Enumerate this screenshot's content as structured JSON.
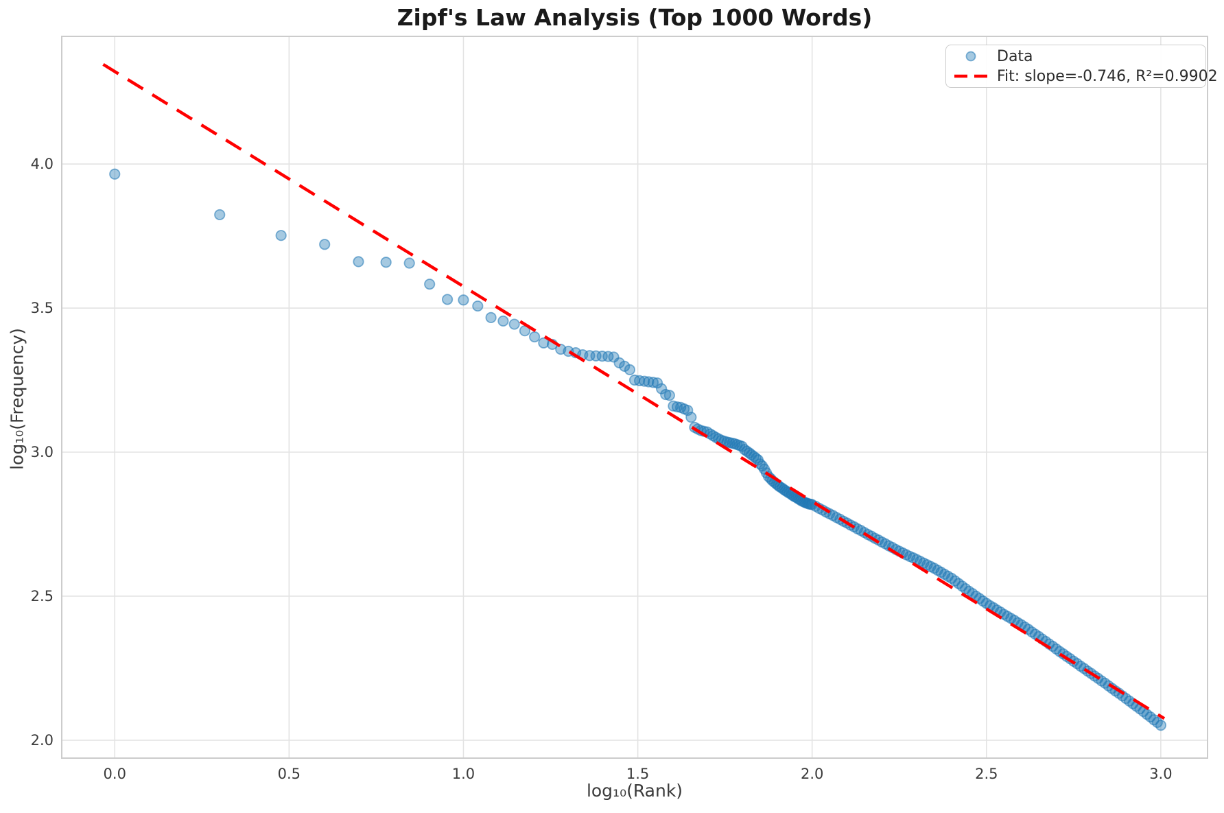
{
  "title": "Zipf's Law Analysis (Top 1000 Words)",
  "legend": {
    "data_label": "Data",
    "fit_label": "Fit: slope=-0.746, R²=0.9902"
  },
  "axes": {
    "xlabel": "log₁₀(Rank)",
    "ylabel": "log₁₀(Frequency)",
    "x_ticks": [
      0.0,
      0.5,
      1.0,
      1.5,
      2.0,
      2.5,
      3.0
    ],
    "x_tick_labels": [
      "0.0",
      "0.5",
      "1.0",
      "1.5",
      "2.0",
      "2.5",
      "3.0"
    ],
    "y_ticks": [
      2.0,
      2.5,
      3.0,
      3.5,
      4.0
    ],
    "y_tick_labels": [
      "2.0",
      "2.5",
      "3.0",
      "3.5",
      "4.0"
    ],
    "xlim": [
      -0.152,
      3.134
    ],
    "ylim": [
      1.938,
      4.443
    ],
    "grid": true
  },
  "colors": {
    "marker_fill": "rgba(31,119,180,0.40)",
    "marker_edge": "rgba(31,119,180,0.55)",
    "fit_line": "#ff0000",
    "grid": "#e3e3e3",
    "spine": "#cccccc",
    "tick_text": "#3b3b3b"
  },
  "chart_data": {
    "type": "scatter",
    "title": "Zipf's Law Analysis (Top 1000 Words)",
    "xlabel": "log₁₀(Rank)",
    "ylabel": "log₁₀(Frequency)",
    "legend_position": "upper right",
    "grid": true,
    "series_name": "Data",
    "fit": {
      "label": "Fit: slope=-0.746, R²=0.9902",
      "slope": -0.746,
      "intercept": 4.321,
      "r_squared": 0.9902,
      "x_start": -0.033,
      "x_end": 3.01
    },
    "points": [
      [
        0.0,
        3.965
      ],
      [
        0.301,
        3.824
      ],
      [
        0.477,
        3.752
      ],
      [
        0.602,
        3.721
      ],
      [
        0.699,
        3.661
      ],
      [
        0.778,
        3.659
      ],
      [
        0.845,
        3.656
      ],
      [
        0.903,
        3.583
      ],
      [
        0.954,
        3.53
      ],
      [
        1.0,
        3.528
      ],
      [
        1.041,
        3.507
      ],
      [
        1.079,
        3.467
      ],
      [
        1.114,
        3.455
      ],
      [
        1.146,
        3.444
      ],
      [
        1.176,
        3.421
      ],
      [
        1.204,
        3.4
      ],
      [
        1.23,
        3.379
      ],
      [
        1.255,
        3.374
      ],
      [
        1.279,
        3.357
      ],
      [
        1.301,
        3.35
      ],
      [
        1.322,
        3.345
      ],
      [
        1.342,
        3.338
      ],
      [
        1.362,
        3.335
      ],
      [
        1.38,
        3.334
      ],
      [
        1.398,
        3.333
      ],
      [
        1.415,
        3.332
      ],
      [
        1.431,
        3.33
      ],
      [
        1.447,
        3.31
      ],
      [
        1.462,
        3.298
      ],
      [
        1.477,
        3.286
      ],
      [
        1.491,
        3.25
      ],
      [
        1.505,
        3.248
      ],
      [
        1.519,
        3.246
      ],
      [
        1.531,
        3.244
      ],
      [
        1.544,
        3.242
      ],
      [
        1.556,
        3.24
      ],
      [
        1.568,
        3.22
      ],
      [
        1.58,
        3.2
      ],
      [
        1.591,
        3.197
      ],
      [
        1.602,
        3.16
      ],
      [
        1.613,
        3.157
      ],
      [
        1.623,
        3.155
      ],
      [
        1.633,
        3.15
      ],
      [
        1.643,
        3.145
      ],
      [
        1.653,
        3.121
      ],
      [
        1.663,
        3.086
      ],
      [
        1.672,
        3.08
      ],
      [
        1.681,
        3.075
      ],
      [
        1.69,
        3.072
      ],
      [
        1.699,
        3.07
      ],
      [
        1.708,
        3.063
      ],
      [
        1.716,
        3.057
      ],
      [
        1.724,
        3.051
      ],
      [
        1.732,
        3.046
      ],
      [
        1.74,
        3.041
      ],
      [
        1.748,
        3.038
      ],
      [
        1.756,
        3.035
      ],
      [
        1.763,
        3.033
      ],
      [
        1.771,
        3.031
      ],
      [
        1.778,
        3.029
      ],
      [
        1.785,
        3.026
      ],
      [
        1.792,
        3.023
      ],
      [
        1.799,
        3.02
      ],
      [
        1.806,
        3.009
      ],
      [
        1.813,
        3.003
      ],
      [
        1.82,
        2.997
      ],
      [
        1.826,
        2.991
      ],
      [
        1.833,
        2.985
      ],
      [
        1.839,
        2.979
      ],
      [
        1.845,
        2.973
      ],
      [
        1.851,
        2.959
      ],
      [
        1.857,
        2.952
      ],
      [
        1.863,
        2.941
      ],
      [
        1.869,
        2.928
      ],
      [
        1.875,
        2.915
      ],
      [
        1.881,
        2.908
      ],
      [
        1.886,
        2.901
      ],
      [
        1.892,
        2.895
      ],
      [
        1.898,
        2.889
      ],
      [
        1.903,
        2.884
      ],
      [
        1.908,
        2.879
      ],
      [
        1.914,
        2.875
      ],
      [
        1.919,
        2.87
      ],
      [
        1.924,
        2.866
      ],
      [
        1.929,
        2.862
      ],
      [
        1.934,
        2.858
      ],
      [
        1.94,
        2.854
      ],
      [
        1.944,
        2.85
      ],
      [
        1.949,
        2.846
      ],
      [
        1.954,
        2.843
      ],
      [
        1.959,
        2.839
      ],
      [
        1.964,
        2.836
      ],
      [
        1.968,
        2.832
      ],
      [
        1.973,
        2.829
      ],
      [
        1.978,
        2.826
      ],
      [
        1.982,
        2.824
      ],
      [
        1.987,
        2.822
      ],
      [
        1.991,
        2.82
      ],
      [
        1.996,
        2.819
      ],
      [
        2.0,
        2.818
      ],
      [
        2.01,
        2.812
      ],
      [
        2.02,
        2.805
      ],
      [
        2.03,
        2.799
      ],
      [
        2.04,
        2.792
      ],
      [
        2.05,
        2.786
      ],
      [
        2.06,
        2.78
      ],
      [
        2.07,
        2.773
      ],
      [
        2.08,
        2.767
      ],
      [
        2.09,
        2.76
      ],
      [
        2.1,
        2.754
      ],
      [
        2.11,
        2.747
      ],
      [
        2.12,
        2.741
      ],
      [
        2.13,
        2.734
      ],
      [
        2.14,
        2.728
      ],
      [
        2.15,
        2.721
      ],
      [
        2.16,
        2.714
      ],
      [
        2.17,
        2.708
      ],
      [
        2.18,
        2.701
      ],
      [
        2.19,
        2.695
      ],
      [
        2.2,
        2.688
      ],
      [
        2.21,
        2.682
      ],
      [
        2.22,
        2.675
      ],
      [
        2.23,
        2.669
      ],
      [
        2.24,
        2.662
      ],
      [
        2.25,
        2.656
      ],
      [
        2.26,
        2.65
      ],
      [
        2.27,
        2.644
      ],
      [
        2.28,
        2.638
      ],
      [
        2.29,
        2.633
      ],
      [
        2.3,
        2.627
      ],
      [
        2.31,
        2.621
      ],
      [
        2.32,
        2.615
      ],
      [
        2.33,
        2.609
      ],
      [
        2.34,
        2.603
      ],
      [
        2.35,
        2.597
      ],
      [
        2.36,
        2.59
      ],
      [
        2.37,
        2.583
      ],
      [
        2.38,
        2.576
      ],
      [
        2.39,
        2.569
      ],
      [
        2.4,
        2.562
      ],
      [
        2.41,
        2.553
      ],
      [
        2.42,
        2.544
      ],
      [
        2.43,
        2.535
      ],
      [
        2.44,
        2.526
      ],
      [
        2.45,
        2.517
      ],
      [
        2.46,
        2.509
      ],
      [
        2.47,
        2.5
      ],
      [
        2.48,
        2.492
      ],
      [
        2.49,
        2.483
      ],
      [
        2.5,
        2.475
      ],
      [
        2.51,
        2.467
      ],
      [
        2.52,
        2.46
      ],
      [
        2.53,
        2.452
      ],
      [
        2.54,
        2.445
      ],
      [
        2.55,
        2.437
      ],
      [
        2.56,
        2.43
      ],
      [
        2.57,
        2.423
      ],
      [
        2.58,
        2.416
      ],
      [
        2.59,
        2.408
      ],
      [
        2.6,
        2.401
      ],
      [
        2.61,
        2.393
      ],
      [
        2.62,
        2.385
      ],
      [
        2.63,
        2.376
      ],
      [
        2.64,
        2.368
      ],
      [
        2.65,
        2.36
      ],
      [
        2.66,
        2.351
      ],
      [
        2.67,
        2.343
      ],
      [
        2.68,
        2.334
      ],
      [
        2.69,
        2.326
      ],
      [
        2.7,
        2.317
      ],
      [
        2.71,
        2.308
      ],
      [
        2.72,
        2.3
      ],
      [
        2.73,
        2.291
      ],
      [
        2.74,
        2.283
      ],
      [
        2.75,
        2.274
      ],
      [
        2.76,
        2.266
      ],
      [
        2.77,
        2.257
      ],
      [
        2.78,
        2.249
      ],
      [
        2.79,
        2.24
      ],
      [
        2.8,
        2.232
      ],
      [
        2.81,
        2.223
      ],
      [
        2.82,
        2.215
      ],
      [
        2.83,
        2.206
      ],
      [
        2.84,
        2.198
      ],
      [
        2.85,
        2.189
      ],
      [
        2.86,
        2.18
      ],
      [
        2.87,
        2.171
      ],
      [
        2.88,
        2.163
      ],
      [
        2.89,
        2.154
      ],
      [
        2.9,
        2.145
      ],
      [
        2.91,
        2.136
      ],
      [
        2.92,
        2.127
      ],
      [
        2.93,
        2.118
      ],
      [
        2.94,
        2.109
      ],
      [
        2.95,
        2.1
      ],
      [
        2.96,
        2.09
      ],
      [
        2.97,
        2.081
      ],
      [
        2.98,
        2.071
      ],
      [
        2.99,
        2.062
      ],
      [
        3.0,
        2.052
      ]
    ]
  }
}
